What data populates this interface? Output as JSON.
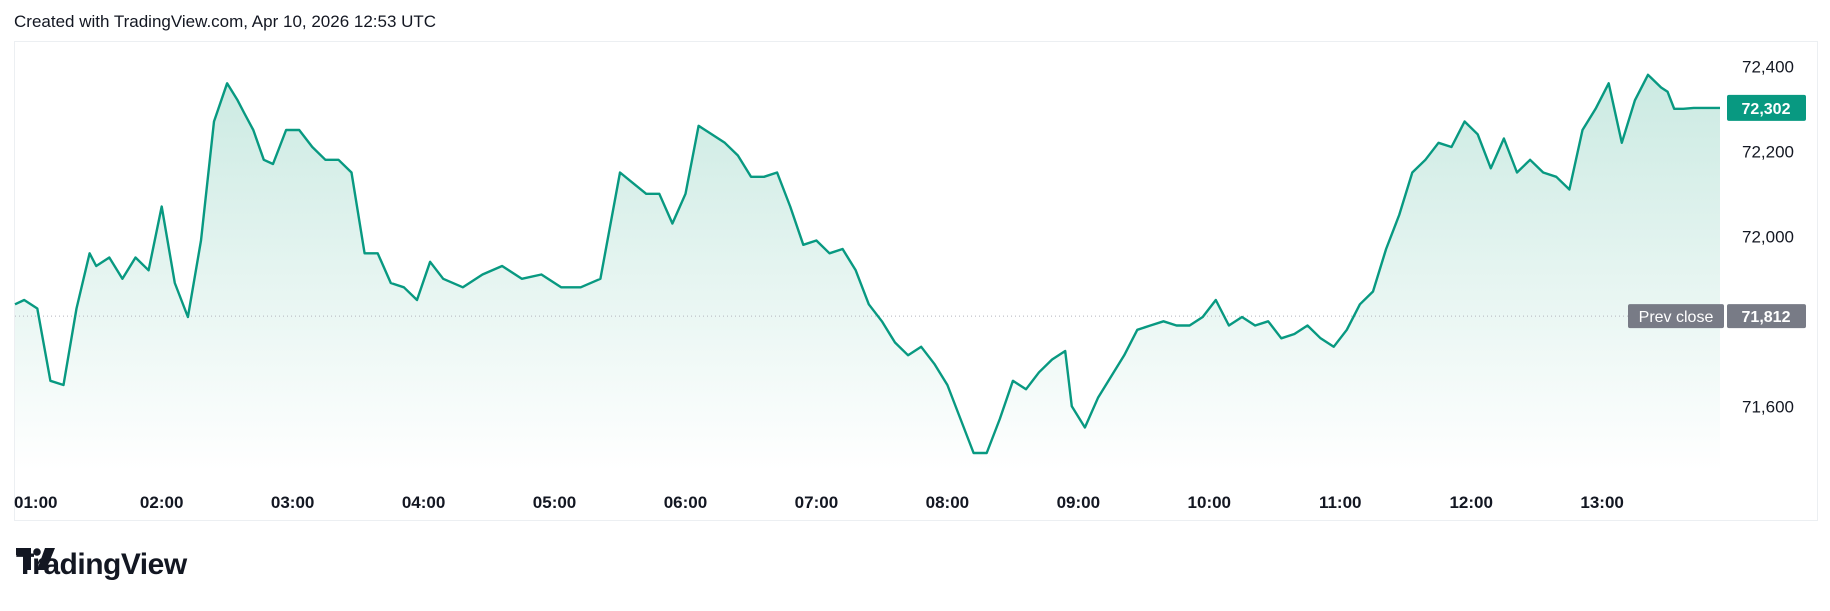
{
  "header": {
    "text": "Created with TradingView.com, Apr 10, 2026 12:53 UTC"
  },
  "brand": {
    "logo_text": "TradingView"
  },
  "colors": {
    "line": "#089981",
    "fill_top": "#cbeae2",
    "fill_bottom": "#ffffff",
    "prev_close_label_bg": "#787b86",
    "grid": "#b2b5be"
  },
  "chart_data": {
    "type": "area",
    "xlabel": "",
    "ylabel": "",
    "x_tick_labels": [
      "01:00",
      "02:00",
      "03:00",
      "04:00",
      "05:00",
      "06:00",
      "07:00",
      "08:00",
      "09:00",
      "10:00",
      "11:00",
      "12:00",
      "13:00"
    ],
    "y_tick_labels": [
      "72,400",
      "72,200",
      "72,000",
      "71,600"
    ],
    "y_tick_values": [
      72400,
      72200,
      72000,
      71600
    ],
    "ylim": [
      71450,
      72450
    ],
    "xlim_hours": [
      0.88,
      13.9
    ],
    "last_price": {
      "label": "72,302",
      "value": 72302
    },
    "prev_close": {
      "title": "Prev close",
      "label": "71,812",
      "value": 71812
    },
    "series": [
      {
        "x_hours": [
          0.88,
          0.95,
          1.05,
          1.15,
          1.25,
          1.35,
          1.45,
          1.5,
          1.6,
          1.7,
          1.8,
          1.9,
          2.0,
          2.1,
          2.2,
          2.3,
          2.4,
          2.5,
          2.58,
          2.63,
          2.7,
          2.78,
          2.85,
          2.95,
          3.05,
          3.15,
          3.25,
          3.35,
          3.45,
          3.55,
          3.65,
          3.75,
          3.85,
          3.95,
          4.05,
          4.15,
          4.3,
          4.45,
          4.6,
          4.75,
          4.9,
          5.05,
          5.2,
          5.35,
          5.5,
          5.62,
          5.7,
          5.8,
          5.9,
          6.0,
          6.1,
          6.2,
          6.3,
          6.4,
          6.5,
          6.6,
          6.7,
          6.8,
          6.9,
          7.0,
          7.1,
          7.2,
          7.3,
          7.4,
          7.5,
          7.6,
          7.7,
          7.8,
          7.9,
          8.0,
          8.1,
          8.2,
          8.3,
          8.4,
          8.5,
          8.6,
          8.7,
          8.8,
          8.9,
          8.95,
          9.05,
          9.15,
          9.25,
          9.35,
          9.45,
          9.55,
          9.65,
          9.75,
          9.85,
          9.95,
          10.05,
          10.15,
          10.25,
          10.35,
          10.45,
          10.55,
          10.65,
          10.75,
          10.85,
          10.95,
          11.05,
          11.15,
          11.25,
          11.35,
          11.45,
          11.55,
          11.65,
          11.75,
          11.85,
          11.95,
          12.05,
          12.15,
          12.25,
          12.35,
          12.45,
          12.55,
          12.65,
          12.75,
          12.85,
          12.95,
          13.05,
          13.15,
          13.25,
          13.35,
          13.45,
          13.5,
          13.55,
          13.62,
          13.7,
          13.78,
          13.84,
          13.9
        ],
        "values": [
          71840,
          71850,
          71830,
          71660,
          71650,
          71830,
          71960,
          71930,
          71950,
          71900,
          71950,
          71920,
          72070,
          71890,
          71810,
          71990,
          72270,
          72360,
          72320,
          72290,
          72250,
          72180,
          72170,
          72250,
          72250,
          72210,
          72180,
          72180,
          72150,
          71960,
          71960,
          71890,
          71880,
          71850,
          71940,
          71900,
          71880,
          71910,
          71930,
          71900,
          71910,
          71880,
          71880,
          71900,
          72150,
          72120,
          72100,
          72100,
          72030,
          72100,
          72260,
          72240,
          72220,
          72190,
          72140,
          72140,
          72150,
          72070,
          71980,
          71990,
          71960,
          71970,
          71920,
          71840,
          71800,
          71750,
          71720,
          71740,
          71700,
          71650,
          71570,
          71490,
          71490,
          71570,
          71660,
          71640,
          71680,
          71710,
          71730,
          71600,
          71550,
          71620,
          71670,
          71720,
          71780,
          71790,
          71800,
          71790,
          71790,
          71810,
          71850,
          71790,
          71810,
          71790,
          71800,
          71760,
          71770,
          71790,
          71760,
          71740,
          71780,
          71840,
          71870,
          71970,
          72050,
          72150,
          72180,
          72220,
          72210,
          72270,
          72240,
          72160,
          72230,
          72150,
          72180,
          72150,
          72140,
          72110,
          72250,
          72300,
          72360,
          72220,
          72320,
          72380,
          72350,
          72340,
          72300,
          72300,
          72302,
          72302,
          72302,
          72302
        ]
      }
    ]
  }
}
